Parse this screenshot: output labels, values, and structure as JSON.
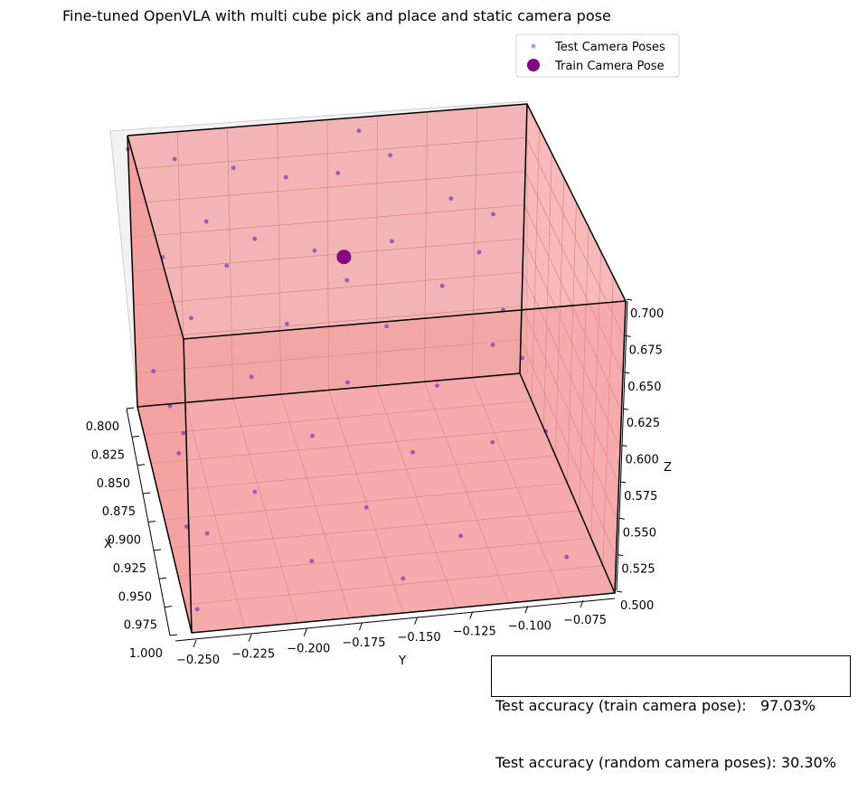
{
  "chart_data": {
    "type": "scatter",
    "title": "Fine-tuned OpenVLA with multi cube pick and place and static camera pose",
    "xlabel": "X",
    "ylabel": "Y",
    "zlabel": "Z",
    "xlim": [
      0.8,
      1.0
    ],
    "ylim": [
      -0.25,
      -0.06
    ],
    "zlim": [
      0.5,
      0.7
    ],
    "x_ticks": [
      "0.800",
      "0.825",
      "0.850",
      "0.875",
      "0.900",
      "0.925",
      "0.950",
      "0.975",
      "1.000"
    ],
    "y_ticks": [
      "−0.250",
      "−0.225",
      "−0.200",
      "−0.175",
      "−0.150",
      "−0.125",
      "−0.100",
      "−0.075"
    ],
    "z_ticks": [
      "0.500",
      "0.525",
      "0.550",
      "0.575",
      "0.600",
      "0.625",
      "0.650",
      "0.675",
      "0.700"
    ],
    "grid": true,
    "legend_position": "top-right",
    "series": [
      {
        "name": "Test Camera Poses",
        "color": "#5b5bff",
        "marker": "small-dot",
        "points": [
          [
            0.8,
            -0.25,
            0.69
          ],
          [
            0.8,
            -0.228,
            0.68
          ],
          [
            0.8,
            -0.2,
            0.67
          ],
          [
            0.8,
            -0.175,
            0.66
          ],
          [
            0.8,
            -0.15,
            0.66
          ],
          [
            0.8,
            -0.125,
            0.67
          ],
          [
            0.8,
            -0.075,
            0.62
          ],
          [
            0.8,
            -0.14,
            0.69
          ],
          [
            0.81,
            -0.215,
            0.64
          ],
          [
            0.82,
            -0.165,
            0.62
          ],
          [
            0.82,
            -0.1,
            0.65
          ],
          [
            0.83,
            -0.195,
            0.64
          ],
          [
            0.83,
            -0.13,
            0.63
          ],
          [
            0.84,
            -0.24,
            0.64
          ],
          [
            0.84,
            -0.21,
            0.63
          ],
          [
            0.85,
            -0.155,
            0.62
          ],
          [
            0.85,
            -0.11,
            0.61
          ],
          [
            0.86,
            -0.23,
            0.61
          ],
          [
            0.86,
            -0.185,
            0.6
          ],
          [
            0.87,
            -0.14,
            0.6
          ],
          [
            0.87,
            -0.09,
            0.58
          ],
          [
            0.88,
            -0.205,
            0.58
          ],
          [
            0.88,
            -0.16,
            0.57
          ],
          [
            0.89,
            -0.12,
            0.57
          ],
          [
            0.9,
            -0.24,
            0.56
          ],
          [
            0.9,
            -0.18,
            0.55
          ],
          [
            0.91,
            -0.135,
            0.54
          ],
          [
            0.92,
            -0.21,
            0.53
          ],
          [
            0.92,
            -0.1,
            0.55
          ],
          [
            0.93,
            -0.16,
            0.52
          ],
          [
            0.94,
            -0.235,
            0.52
          ],
          [
            0.95,
            -0.12,
            0.51
          ],
          [
            0.96,
            -0.19,
            0.51
          ],
          [
            0.97,
            -0.15,
            0.5
          ],
          [
            0.98,
            -0.245,
            0.5
          ],
          [
            0.99,
            -0.08,
            0.52
          ],
          [
            0.83,
            -0.245,
            0.55
          ],
          [
            0.85,
            -0.24,
            0.54
          ],
          [
            0.88,
            -0.24,
            0.53
          ],
          [
            0.92,
            -0.242,
            0.51
          ],
          [
            0.86,
            -0.095,
            0.64
          ],
          [
            0.89,
            -0.09,
            0.62
          ],
          [
            0.91,
            -0.085,
            0.6
          ],
          [
            0.94,
            -0.08,
            0.57
          ]
        ]
      },
      {
        "name": "Train Camera Pose",
        "color": "#800080",
        "marker": "large-dot",
        "points": [
          [
            0.9,
            -0.165,
            0.675
          ]
        ]
      }
    ]
  },
  "legend": {
    "test_label": "Test Camera Poses",
    "train_label": "Train Camera Pose"
  },
  "accuracy_box": {
    "line1": "Test accuracy (train camera pose):   97.03%",
    "line2": "Test accuracy (random camera poses): 30.30%"
  }
}
